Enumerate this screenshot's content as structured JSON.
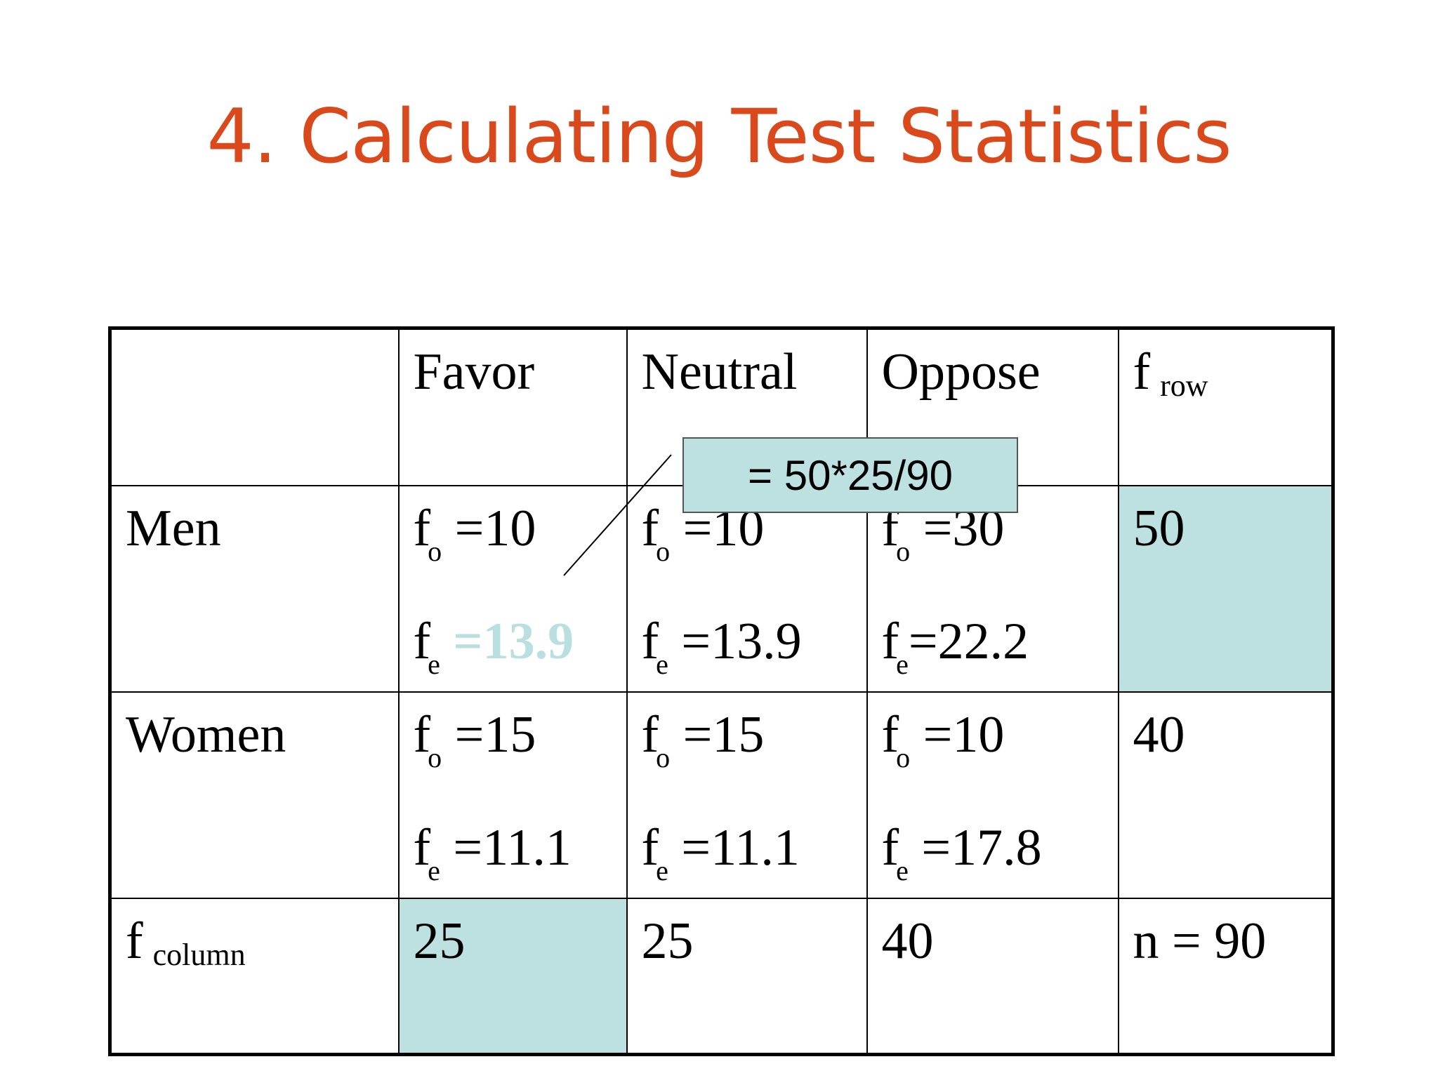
{
  "slide": {
    "title": "4. Calculating Test Statistics",
    "colors": {
      "title": "#d9491c",
      "highlight_fill": "#bde0e1",
      "highlight_text": "#b9dfe0",
      "callout_fill": "#bde0e1"
    }
  },
  "table": {
    "headers": {
      "favor": "Favor",
      "neutral": "Neutral",
      "oppose": "Oppose",
      "frow": {
        "f": "f",
        "sub": "row"
      }
    },
    "rows": {
      "men": {
        "label": "Men",
        "favor": {
          "fo_value": "=10",
          "fe_value": "=13.9"
        },
        "neutral": {
          "fo_value": "=10",
          "fe_value": "=13.9"
        },
        "oppose": {
          "fo_value": "=30",
          "fe_value": "=22.2"
        },
        "total": "50"
      },
      "women": {
        "label": "Women",
        "favor": {
          "fo_value": "=15",
          "fe_value": "=11.1"
        },
        "neutral": {
          "fo_value": "=15",
          "fe_value": "=11.1"
        },
        "oppose": {
          "fo_value": "=10",
          "fe_value": "=17.8"
        },
        "total": "40"
      },
      "column": {
        "label": {
          "f": "f",
          "sub": "column"
        },
        "favor": "25",
        "neutral": "25",
        "oppose": "40",
        "total": "n = 90"
      }
    },
    "symbols": {
      "f": "f",
      "o": "o",
      "e": "e"
    }
  },
  "callout": {
    "text": "=  50*25/90"
  }
}
